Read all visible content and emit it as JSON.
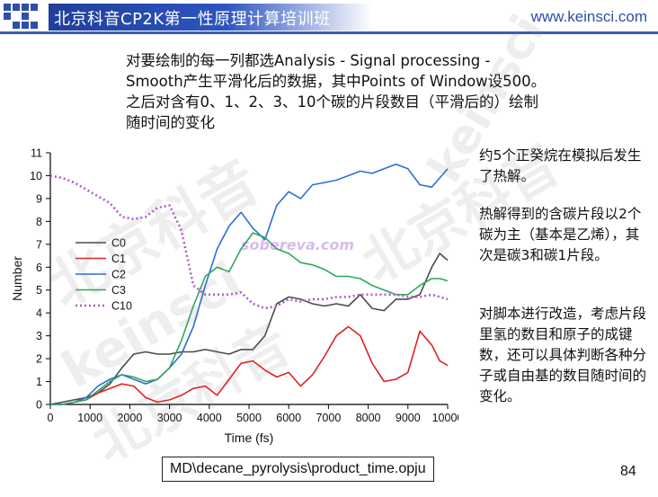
{
  "header": {
    "title": "北京科音CP2K第一性原理计算培训班",
    "url": "www.keinsci.com",
    "brand_color": "#2c4ea8"
  },
  "intro": "对要绘制的每一列都选Analysis - Signal processing - Smooth产生平滑化后的数据，其中Points of Window设500。之后对含有0、1、2、3、10个碳的片段数目（平滑后的）绘制随时间的变化",
  "side": {
    "p1": "约5个正癸烷在模拟后发生了热解。",
    "p2": "热解得到的含碳片段以2个碳为主（基本是乙烯），其次是碳3和碳1片段。",
    "p3": "对脚本进行改造，考虑片段里氢的数目和原子的成键数，还可以具体判断各种分子或自由基的数目随时间的变化。"
  },
  "footer": {
    "path": "MD\\decane_pyrolysis\\product_time.opju",
    "page": "84"
  },
  "watermark": {
    "big1": "北京科音",
    "big2": "北京科音",
    "big3": "北京科音",
    "latin1": "keinsci",
    "latin2": "keinsci",
    "site": "sobereva.com"
  },
  "chart_data": {
    "type": "line",
    "xlabel": "Time (fs)",
    "ylabel": "Number",
    "xlim": [
      0,
      10000
    ],
    "ylim": [
      0,
      11
    ],
    "xticks": [
      0,
      1000,
      2000,
      3000,
      4000,
      5000,
      6000,
      7000,
      8000,
      9000,
      10000
    ],
    "yticks": [
      0,
      1,
      2,
      3,
      4,
      5,
      6,
      7,
      8,
      9,
      10,
      11
    ],
    "grid": false,
    "legend": "upper-left",
    "series": [
      {
        "name": "C0",
        "color": "#4a4a4a",
        "dash": "",
        "x": [
          0,
          300,
          600,
          900,
          1200,
          1500,
          1800,
          2100,
          2400,
          2700,
          3000,
          3300,
          3600,
          3900,
          4200,
          4500,
          4800,
          5100,
          5400,
          5700,
          6000,
          6300,
          6600,
          6900,
          7200,
          7500,
          7800,
          8100,
          8400,
          8700,
          9000,
          9300,
          9600,
          9800,
          10000
        ],
        "y": [
          0,
          0.1,
          0.2,
          0.3,
          0.5,
          0.9,
          1.6,
          2.2,
          2.3,
          2.2,
          2.2,
          2.3,
          2.3,
          2.4,
          2.3,
          2.2,
          2.4,
          2.4,
          3.0,
          4.4,
          4.7,
          4.6,
          4.4,
          4.3,
          4.4,
          4.3,
          4.8,
          4.2,
          4.1,
          4.6,
          4.6,
          4.8,
          6.0,
          6.6,
          6.3
        ]
      },
      {
        "name": "C1",
        "color": "#e02020",
        "dash": "",
        "x": [
          0,
          300,
          600,
          900,
          1200,
          1500,
          1800,
          2100,
          2400,
          2700,
          3000,
          3300,
          3600,
          3900,
          4200,
          4500,
          4800,
          5100,
          5400,
          5700,
          6000,
          6300,
          6600,
          6900,
          7200,
          7500,
          7800,
          8100,
          8400,
          8700,
          9000,
          9300,
          9600,
          9800,
          10000
        ],
        "y": [
          0,
          0,
          0.1,
          0.2,
          0.5,
          0.7,
          0.9,
          0.8,
          0.3,
          0.1,
          0.2,
          0.4,
          0.7,
          0.8,
          0.4,
          1.1,
          1.8,
          1.9,
          1.5,
          1.2,
          1.4,
          0.8,
          1.3,
          2.1,
          3.0,
          3.4,
          3.0,
          1.8,
          1.0,
          1.1,
          1.4,
          3.2,
          2.6,
          1.9,
          1.7
        ]
      },
      {
        "name": "C2",
        "color": "#2a6fd6",
        "dash": "",
        "x": [
          0,
          300,
          600,
          900,
          1200,
          1500,
          1800,
          2100,
          2400,
          2700,
          3000,
          3300,
          3600,
          3900,
          4200,
          4500,
          4800,
          5100,
          5400,
          5700,
          6000,
          6300,
          6600,
          6900,
          7200,
          7500,
          7800,
          8100,
          8400,
          8700,
          9000,
          9300,
          9600,
          9800,
          10000
        ],
        "y": [
          0,
          0,
          0.1,
          0.3,
          0.8,
          1.1,
          1.3,
          1.1,
          0.9,
          1.1,
          1.6,
          2.2,
          3.4,
          5.2,
          6.8,
          7.8,
          8.4,
          7.7,
          7.2,
          8.7,
          9.3,
          9.0,
          9.6,
          9.7,
          9.8,
          10.0,
          10.2,
          10.1,
          10.3,
          10.5,
          10.3,
          9.6,
          9.5,
          9.9,
          10.3
        ]
      },
      {
        "name": "C3",
        "color": "#2ea85a",
        "dash": "",
        "x": [
          0,
          300,
          600,
          900,
          1200,
          1500,
          1800,
          2100,
          2400,
          2700,
          3000,
          3300,
          3600,
          3900,
          4200,
          4500,
          4800,
          5100,
          5400,
          5700,
          6000,
          6300,
          6600,
          6900,
          7200,
          7500,
          7800,
          8100,
          8400,
          8700,
          9000,
          9300,
          9600,
          9800,
          10000
        ],
        "y": [
          0,
          0,
          0.1,
          0.2,
          0.6,
          1.0,
          1.3,
          1.2,
          1.0,
          1.1,
          1.6,
          2.8,
          4.3,
          5.6,
          6.0,
          5.8,
          6.8,
          7.5,
          7.3,
          6.8,
          6.6,
          6.2,
          6.1,
          5.9,
          5.6,
          5.6,
          5.5,
          5.2,
          5.0,
          4.8,
          4.8,
          5.2,
          5.5,
          5.5,
          5.4
        ]
      },
      {
        "name": "C10",
        "color": "#b45ac8",
        "dash": "2,3",
        "x": [
          0,
          300,
          600,
          900,
          1200,
          1500,
          1800,
          2100,
          2400,
          2700,
          3000,
          3300,
          3600,
          3900,
          4200,
          4500,
          4800,
          5100,
          5400,
          5700,
          6000,
          6300,
          6600,
          6900,
          7200,
          7500,
          7800,
          8100,
          8400,
          8700,
          9000,
          9300,
          9600,
          9800,
          10000
        ],
        "y": [
          10,
          9.9,
          9.7,
          9.4,
          9.1,
          8.8,
          8.2,
          8.1,
          8.2,
          8.6,
          8.7,
          7.6,
          5.2,
          4.8,
          4.8,
          4.8,
          4.9,
          4.4,
          4.2,
          4.3,
          4.6,
          4.5,
          4.6,
          4.6,
          4.7,
          4.7,
          4.8,
          4.8,
          4.8,
          4.8,
          4.7,
          4.7,
          4.8,
          4.7,
          4.6
        ]
      }
    ]
  }
}
